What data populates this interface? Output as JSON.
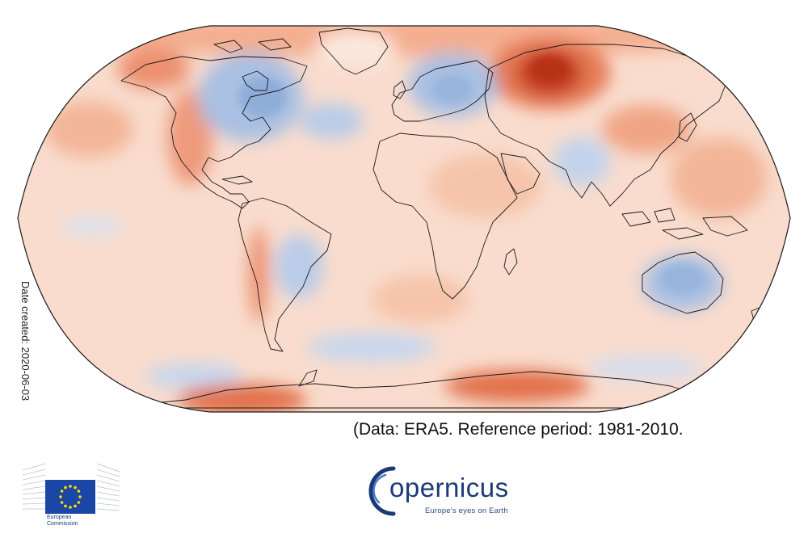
{
  "caption": {
    "date_created": "Date created: 2020-06-03",
    "data_reference": "(Data: ERA5.  Reference period: 1981-2010."
  },
  "logos": {
    "european_commission": {
      "icon": "eu-flag-building-icon",
      "line1": "European",
      "line2": "Commission",
      "flag_color": "#1a47a6",
      "stars_color": "#ffdd00"
    },
    "copernicus": {
      "icon": "copernicus-arc-icon",
      "wordmark": "opernicus",
      "tagline": "Europe's eyes on Earth",
      "brand_color": "#1c3a78"
    }
  },
  "map": {
    "projection": "Robinson",
    "colors": {
      "warm_strong": "#c0391a",
      "warm_mid": "#ea8b66",
      "warm_light": "#f8d6c3",
      "neutral": "#fbeee6",
      "cool_light": "#dfe8f6",
      "cool_mid": "#a9c0e3",
      "coast": "#1a1a1a"
    }
  }
}
